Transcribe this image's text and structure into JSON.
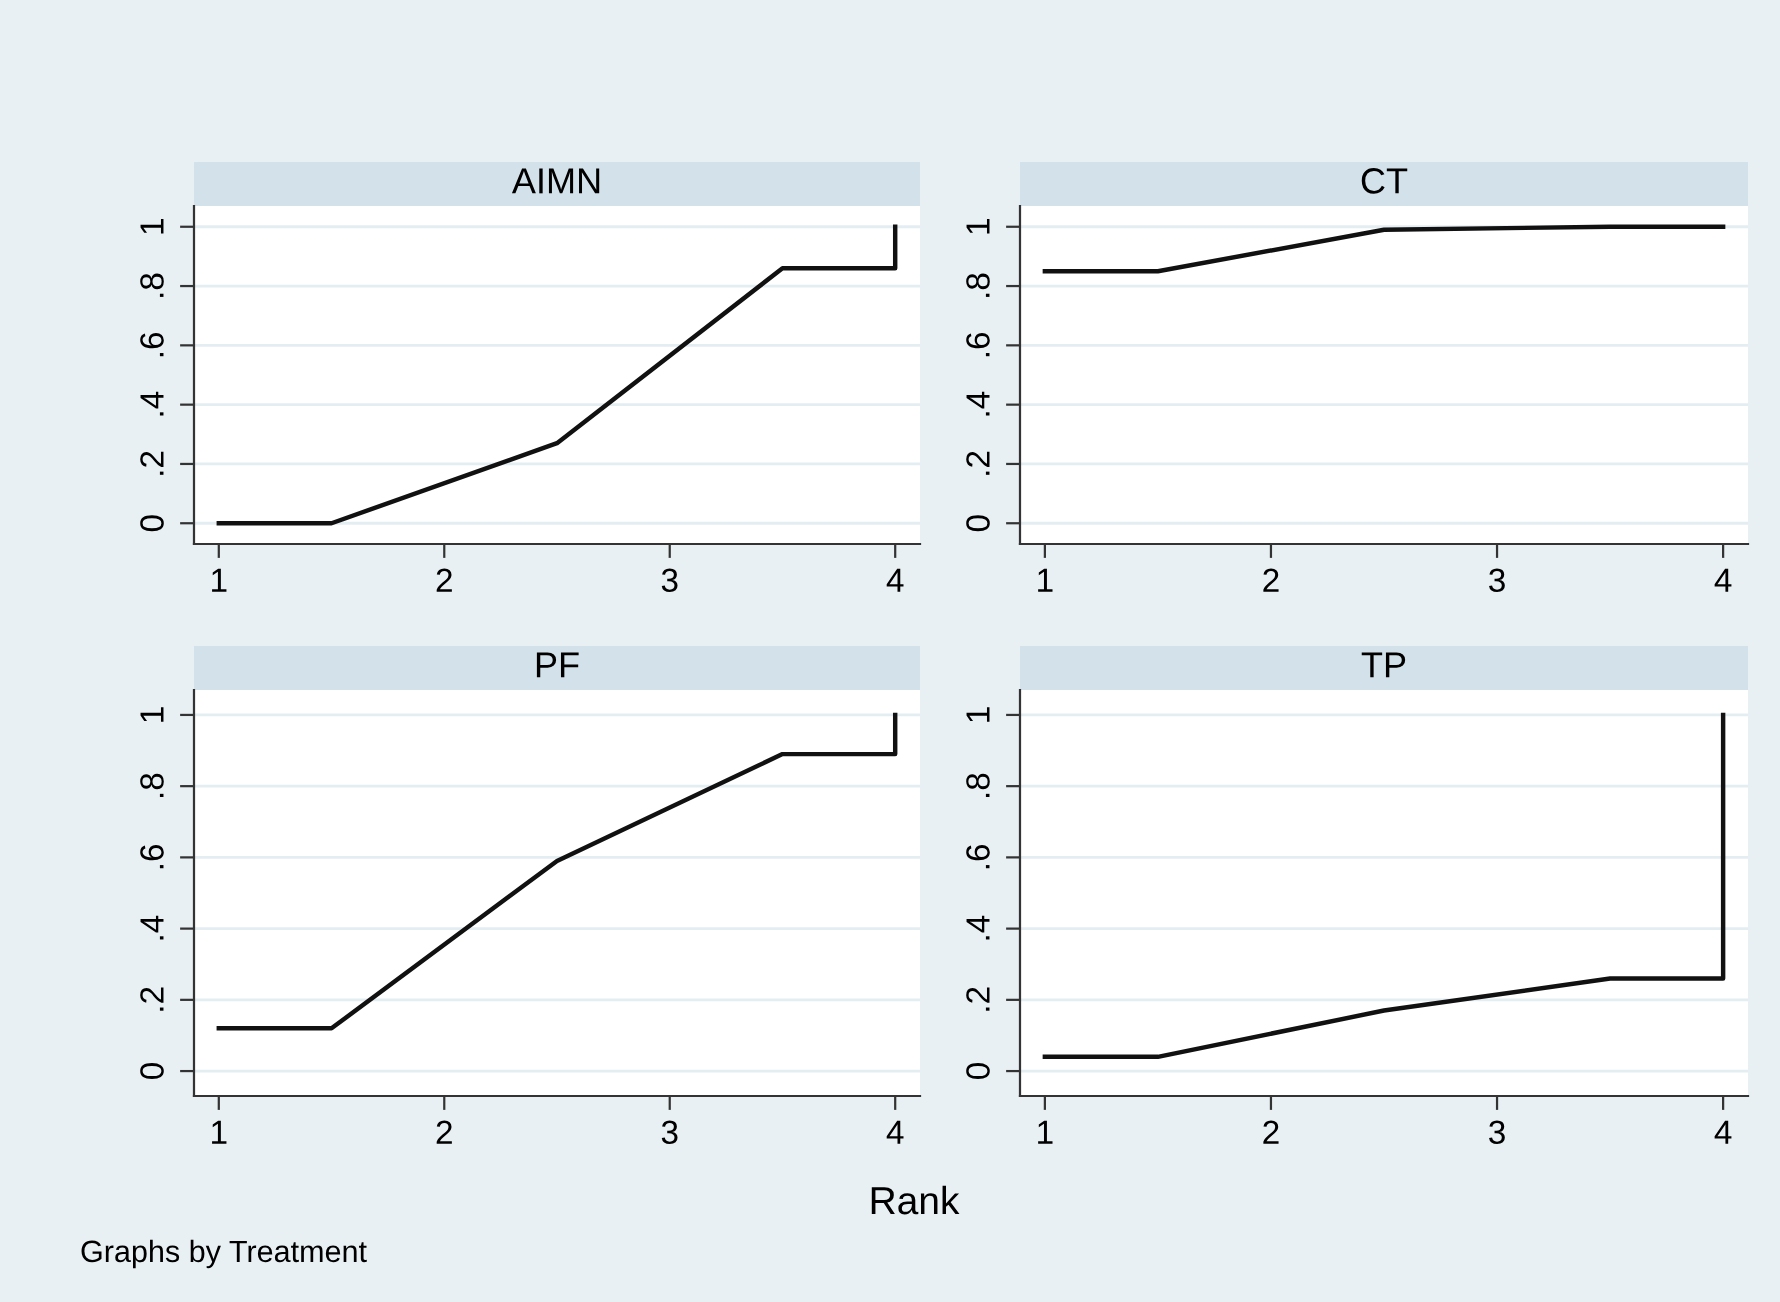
{
  "chart_data": [
    {
      "type": "line",
      "title": "AIMN",
      "x": [
        1,
        1.5,
        2.5,
        3.5,
        4,
        4
      ],
      "values": [
        0,
        0,
        0.27,
        0.86,
        0.86,
        1
      ],
      "color": "#111111",
      "xlim": [
        0.89,
        4.11
      ],
      "ylim": [
        -0.07,
        1.07
      ],
      "xticks": [
        1,
        2,
        3,
        4
      ],
      "yticks": [
        0,
        {
          "value": 0.2,
          "label": ".2"
        },
        {
          "value": 0.4,
          "label": ".4"
        },
        {
          "value": 0.6,
          "label": ".6"
        },
        {
          "value": 0.8,
          "label": ".8"
        },
        1
      ],
      "grid": "y"
    },
    {
      "type": "line",
      "title": "CT",
      "x": [
        1,
        1.5,
        2.5,
        3.5,
        4
      ],
      "values": [
        0.85,
        0.85,
        0.99,
        1,
        1
      ],
      "color": "#111111",
      "xlim": [
        0.89,
        4.11
      ],
      "ylim": [
        -0.07,
        1.07
      ],
      "xticks": [
        1,
        2,
        3,
        4
      ],
      "yticks": [
        0,
        {
          "value": 0.2,
          "label": ".2"
        },
        {
          "value": 0.4,
          "label": ".4"
        },
        {
          "value": 0.6,
          "label": ".6"
        },
        {
          "value": 0.8,
          "label": ".8"
        },
        1
      ],
      "grid": "y"
    },
    {
      "type": "line",
      "title": "PF",
      "x": [
        1,
        1.5,
        2.5,
        3.5,
        4,
        4
      ],
      "values": [
        0.12,
        0.12,
        0.59,
        0.89,
        0.89,
        1
      ],
      "color": "#111111",
      "xlim": [
        0.89,
        4.11
      ],
      "ylim": [
        -0.07,
        1.07
      ],
      "xticks": [
        1,
        2,
        3,
        4
      ],
      "yticks": [
        0,
        {
          "value": 0.2,
          "label": ".2"
        },
        {
          "value": 0.4,
          "label": ".4"
        },
        {
          "value": 0.6,
          "label": ".6"
        },
        {
          "value": 0.8,
          "label": ".8"
        },
        1
      ],
      "grid": "y"
    },
    {
      "type": "line",
      "title": "TP",
      "x": [
        1,
        1.5,
        2.5,
        3.5,
        4,
        4
      ],
      "values": [
        0.04,
        0.04,
        0.17,
        0.26,
        0.26,
        1
      ],
      "color": "#111111",
      "xlim": [
        0.89,
        4.11
      ],
      "ylim": [
        -0.07,
        1.07
      ],
      "xticks": [
        1,
        2,
        3,
        4
      ],
      "yticks": [
        0,
        {
          "value": 0.2,
          "label": ".2"
        },
        {
          "value": 0.4,
          "label": ".4"
        },
        {
          "value": 0.6,
          "label": ".6"
        },
        {
          "value": 0.8,
          "label": ".8"
        },
        1
      ],
      "grid": "y",
      "xlabel": "Rank",
      "annotations": [
        "Graphs by Treatment"
      ]
    }
  ]
}
